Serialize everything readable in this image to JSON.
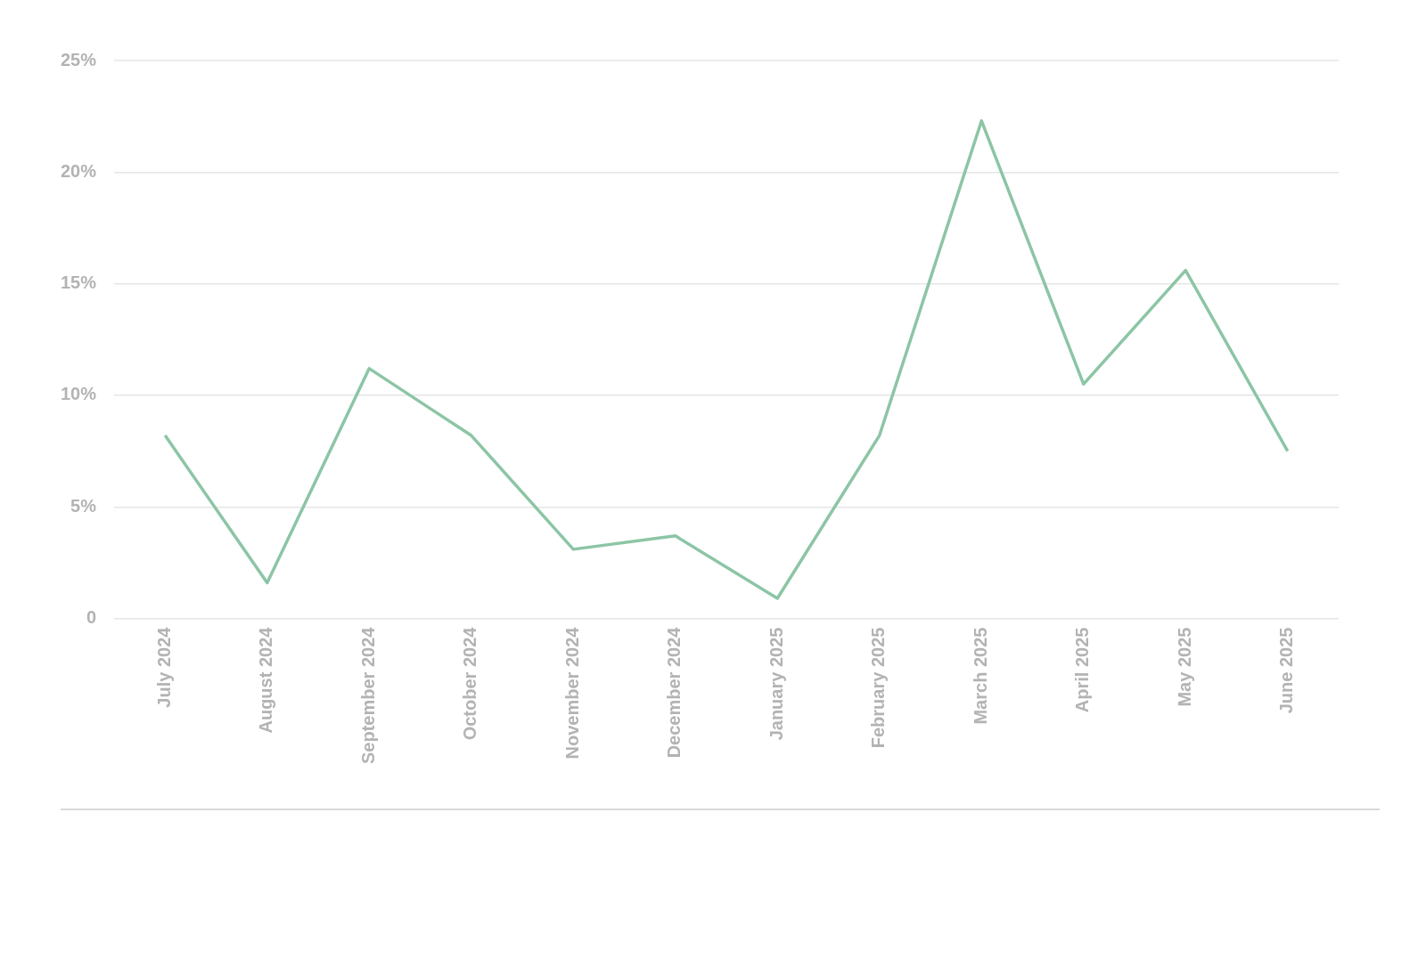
{
  "chart_data": {
    "type": "line",
    "categories": [
      "July 2024",
      "August 2024",
      "September 2024",
      "October 2024",
      "November 2024",
      "December 2024",
      "January 2025",
      "February 2025",
      "March 2025",
      "April 2025",
      "May 2025",
      "June 2025"
    ],
    "series": [
      {
        "color": "#8cc5a5",
        "values": [
          8.2,
          1.6,
          11.2,
          8.2,
          3.1,
          3.7,
          0.9,
          8.2,
          22.3,
          10.5,
          15.6,
          7.5
        ]
      }
    ],
    "ylim": [
      0,
      25
    ],
    "yticks": [
      {
        "value": 0,
        "label": "0"
      },
      {
        "value": 5,
        "label": "5%"
      },
      {
        "value": 10,
        "label": "10%"
      },
      {
        "value": 15,
        "label": "15%"
      },
      {
        "value": 20,
        "label": "20%"
      },
      {
        "value": 25,
        "label": "25%"
      }
    ],
    "grid": "y",
    "legend": false,
    "marker": "none",
    "line_style": "solid"
  }
}
